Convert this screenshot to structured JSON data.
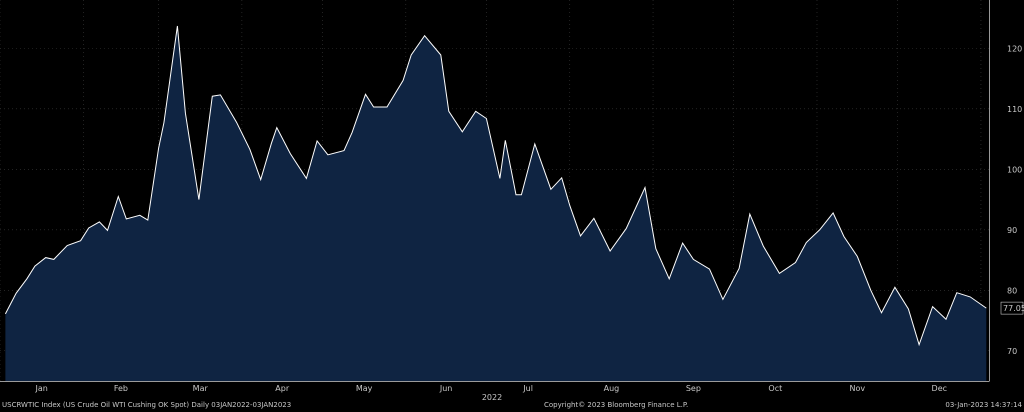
{
  "chart_data": {
    "type": "area",
    "title": "",
    "xlabel": "2022",
    "ylabel": "",
    "ylim": [
      65,
      128
    ],
    "y_ticks": [
      70,
      80,
      90,
      100,
      110,
      120
    ],
    "x_ticks": [
      "Jan",
      "Feb",
      "Mar",
      "Apr",
      "May",
      "Jun",
      "Jul",
      "Aug",
      "Sep",
      "Oct",
      "Nov",
      "Dec"
    ],
    "grid": true,
    "last_value_label": "77.05",
    "colors": {
      "line": "#ffffff",
      "fill": "#0f2442",
      "grid": "#3a3a3a",
      "background": "#000000"
    },
    "series": [
      {
        "x": [
          "2022-01-03",
          "2022-01-07",
          "2022-01-11",
          "2022-01-14",
          "2022-01-18",
          "2022-01-21",
          "2022-01-26",
          "2022-01-31",
          "2022-02-03",
          "2022-02-07",
          "2022-02-10",
          "2022-02-14",
          "2022-02-17",
          "2022-02-22",
          "2022-02-25",
          "2022-03-01",
          "2022-03-03",
          "2022-03-08",
          "2022-03-11",
          "2022-03-16",
          "2022-03-21",
          "2022-03-24",
          "2022-03-30",
          "2022-04-04",
          "2022-04-08",
          "2022-04-12",
          "2022-04-14",
          "2022-04-19",
          "2022-04-25",
          "2022-04-29",
          "2022-05-03",
          "2022-05-09",
          "2022-05-12",
          "2022-05-17",
          "2022-05-20",
          "2022-05-25",
          "2022-05-31",
          "2022-06-03",
          "2022-06-08",
          "2022-06-14",
          "2022-06-17",
          "2022-06-22",
          "2022-06-27",
          "2022-07-01",
          "2022-07-06",
          "2022-07-08",
          "2022-07-12",
          "2022-07-14",
          "2022-07-19",
          "2022-07-25",
          "2022-07-29",
          "2022-08-01",
          "2022-08-05",
          "2022-08-10",
          "2022-08-16",
          "2022-08-22",
          "2022-08-29",
          "2022-09-02",
          "2022-09-07",
          "2022-09-12",
          "2022-09-16",
          "2022-09-22",
          "2022-09-27",
          "2022-10-03",
          "2022-10-07",
          "2022-10-12",
          "2022-10-18",
          "2022-10-24",
          "2022-10-28",
          "2022-11-02",
          "2022-11-07",
          "2022-11-11",
          "2022-11-16",
          "2022-11-21",
          "2022-11-25",
          "2022-11-30",
          "2022-12-05",
          "2022-12-09",
          "2022-12-14",
          "2022-12-19",
          "2022-12-23",
          "2022-12-28",
          "2023-01-03"
        ],
        "y": [
          76.1,
          79.5,
          81.9,
          84.0,
          85.4,
          85.1,
          87.4,
          88.2,
          90.3,
          91.3,
          89.9,
          95.5,
          91.8,
          92.4,
          91.6,
          103.5,
          107.7,
          123.7,
          109.3,
          95.0,
          112.1,
          112.3,
          107.8,
          103.3,
          98.3,
          104.3,
          106.9,
          102.6,
          98.5,
          104.7,
          102.4,
          103.1,
          106.1,
          112.4,
          110.3,
          110.3,
          114.7,
          118.9,
          122.1,
          118.9,
          109.6,
          106.2,
          109.6,
          108.4,
          98.5,
          104.8,
          95.8,
          95.8,
          104.2,
          96.7,
          98.6,
          94.0,
          89.0,
          91.9,
          86.5,
          90.2,
          97.0,
          86.9,
          81.9,
          87.8,
          85.1,
          83.5,
          78.5,
          83.6,
          92.6,
          87.3,
          82.8,
          84.6,
          87.9,
          90.0,
          92.8,
          88.9,
          85.6,
          80.0,
          76.3,
          80.5,
          76.9,
          71.0,
          77.3,
          75.2,
          79.6,
          78.9,
          77.05
        ]
      }
    ]
  },
  "footer": {
    "left": "USCRWTIC Index (US Crude Oil WTI Cushing OK Spot)  Daily 03JAN2022-03JAN2023",
    "center": "Copyright© 2023 Bloomberg Finance L.P.",
    "right": "03-Jan-2023 14:37:14"
  }
}
